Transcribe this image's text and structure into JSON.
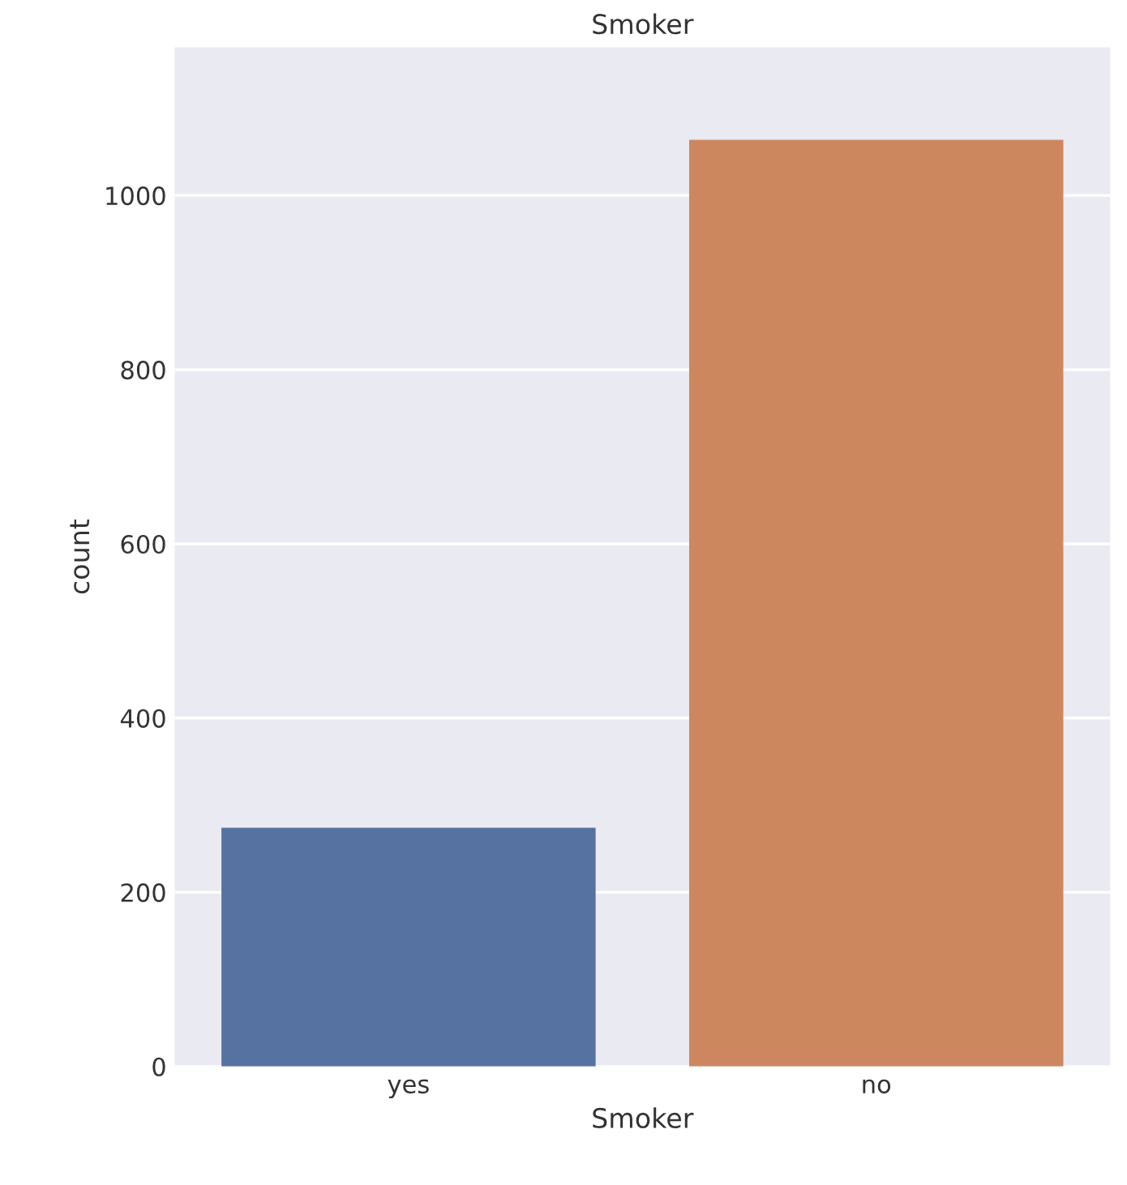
{
  "chart_data": {
    "type": "bar",
    "title": "Smoker",
    "xlabel": "Smoker",
    "ylabel": "count",
    "categories": [
      "yes",
      "no"
    ],
    "values": [
      274,
      1064
    ],
    "colors": [
      "#5572a0",
      "#cd875f"
    ],
    "ylim": [
      0,
      1170
    ],
    "yticks": [
      0,
      200,
      400,
      600,
      800,
      1000
    ],
    "grid": "y",
    "legend": false
  }
}
